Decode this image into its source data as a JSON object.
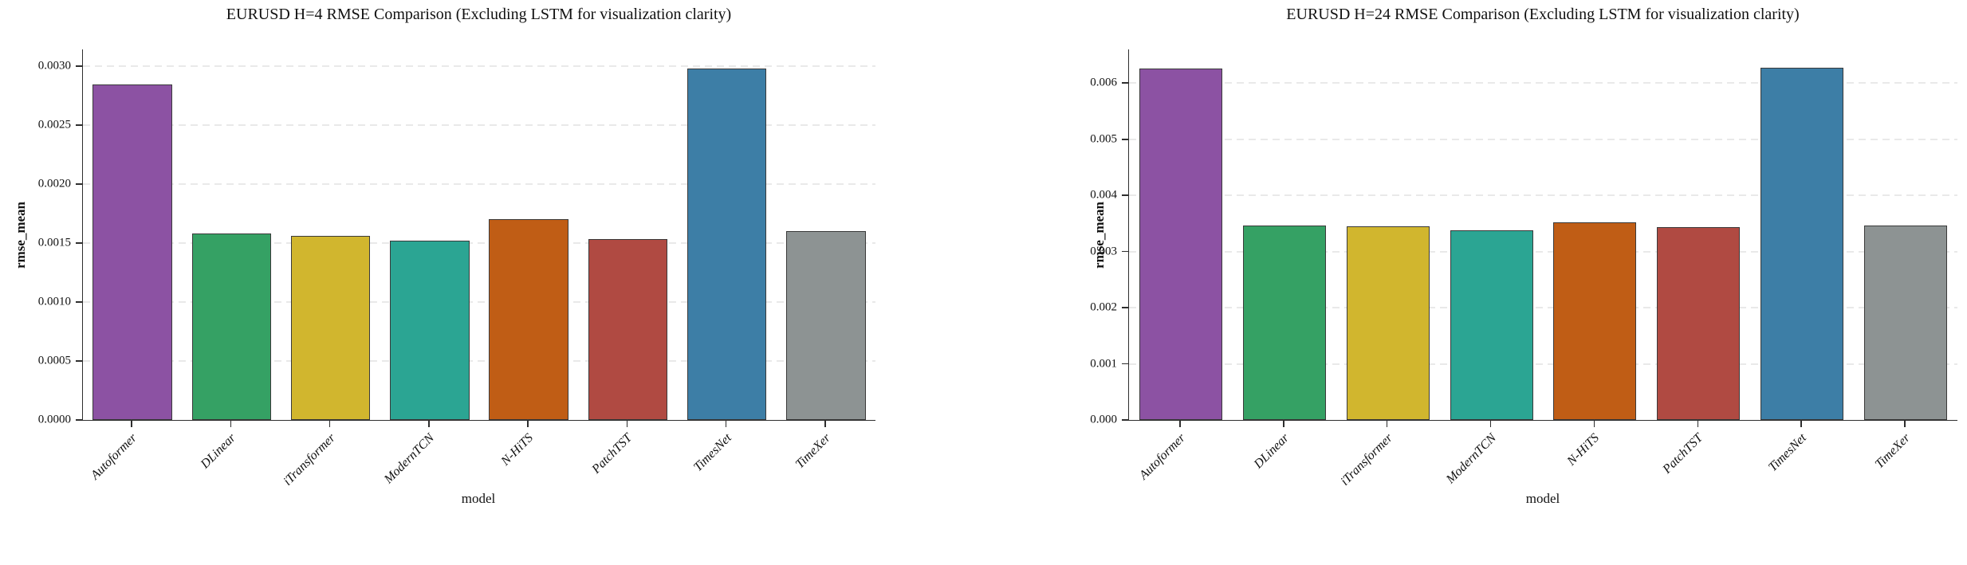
{
  "figure": {
    "background": "#ffffff",
    "bar_edge_color": "#3a3a3a",
    "gridline_color": "#e9e9e9",
    "axis_color": "#2e2e2e"
  },
  "chart_data": [
    {
      "type": "bar",
      "title": "EURUSD H=4 RMSE Comparison (Excluding LSTM for visualization clarity)",
      "xlabel": "model",
      "ylabel": "rmse_mean",
      "categories": [
        "Autoformer",
        "DLinear",
        "iTransformer",
        "ModernTCN",
        "N-HiTS",
        "PatchTST",
        "TimesNet",
        "TimeXer"
      ],
      "values": [
        0.00284,
        0.00158,
        0.00156,
        0.00152,
        0.0017,
        0.00153,
        0.00298,
        0.0016
      ],
      "colors": [
        "#8c52a3",
        "#35a164",
        "#d1b62e",
        "#2ba593",
        "#c05d15",
        "#b04a42",
        "#3d7ea6",
        "#8d9393"
      ],
      "ylim": [
        0,
        0.00314
      ],
      "yticks": [
        {
          "label": "0.0000",
          "value": 0.0
        },
        {
          "label": "0.0005",
          "value": 0.0005
        },
        {
          "label": "0.0010",
          "value": 0.001
        },
        {
          "label": "0.0015",
          "value": 0.0015
        },
        {
          "label": "0.0020",
          "value": 0.002
        },
        {
          "label": "0.0025",
          "value": 0.0025
        },
        {
          "label": "0.0030",
          "value": 0.003
        }
      ],
      "grid": "horizontal-dashed",
      "legend": "none"
    },
    {
      "type": "bar",
      "title": "EURUSD H=24 RMSE Comparison (Excluding LSTM for visualization clarity)",
      "xlabel": "model",
      "ylabel": "rmse_mean",
      "categories": [
        "Autoformer",
        "DLinear",
        "iTransformer",
        "ModernTCN",
        "N-HiTS",
        "PatchTST",
        "TimesNet",
        "TimeXer"
      ],
      "values": [
        0.00626,
        0.00347,
        0.00345,
        0.00338,
        0.00352,
        0.00344,
        0.00628,
        0.00347
      ],
      "colors": [
        "#8c52a3",
        "#35a164",
        "#d1b62e",
        "#2ba593",
        "#c05d15",
        "#b04a42",
        "#3d7ea6",
        "#8d9393"
      ],
      "ylim": [
        0,
        0.0066
      ],
      "yticks": [
        {
          "label": "0.000",
          "value": 0.0
        },
        {
          "label": "0.001",
          "value": 0.001
        },
        {
          "label": "0.002",
          "value": 0.002
        },
        {
          "label": "0.003",
          "value": 0.003
        },
        {
          "label": "0.004",
          "value": 0.004
        },
        {
          "label": "0.005",
          "value": 0.005
        },
        {
          "label": "0.006",
          "value": 0.006
        }
      ],
      "grid": "horizontal-dashed",
      "legend": "none"
    }
  ]
}
